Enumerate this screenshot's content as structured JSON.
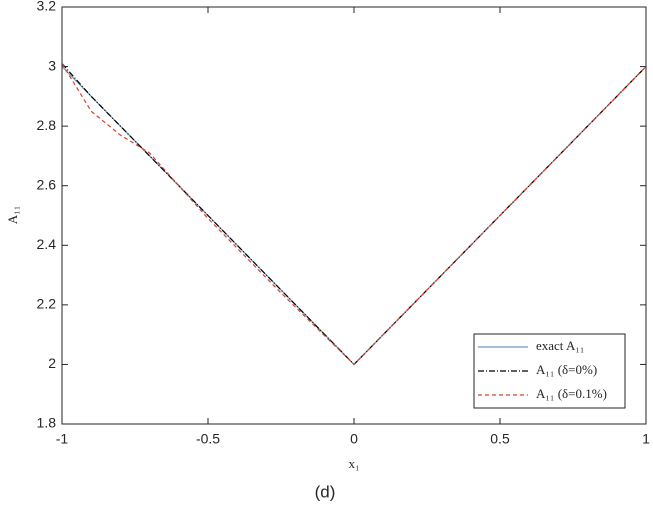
{
  "chart_data": {
    "type": "line",
    "xlabel": "x₁",
    "ylabel": "A₁₁",
    "caption": "(d)",
    "x": [
      -1,
      -0.9,
      -0.8,
      -0.7,
      -0.6,
      -0.5,
      -0.25,
      0,
      0.25,
      0.5,
      0.75,
      1
    ],
    "series": [
      {
        "name": "exact A₁₁",
        "color": "#6a9cc0",
        "linestyle": "solid",
        "values": [
          3,
          2.9,
          2.8,
          2.7,
          2.6,
          2.5,
          2.25,
          2,
          2.25,
          2.5,
          2.75,
          3
        ]
      },
      {
        "name": "A₁₁ (δ=0%)",
        "color": "#000000",
        "linestyle": "dashdot",
        "values": [
          3.01,
          2.9,
          2.8,
          2.7,
          2.6,
          2.5,
          2.25,
          2,
          2.25,
          2.5,
          2.75,
          3
        ]
      },
      {
        "name": "A₁₁ (δ=0.1%)",
        "color": "#d9432a",
        "linestyle": "dashed",
        "values": [
          3.01,
          2.85,
          2.77,
          2.71,
          2.6,
          2.49,
          2.24,
          2,
          2.25,
          2.5,
          2.75,
          3
        ]
      }
    ],
    "xlim": [
      -1,
      1
    ],
    "xticks": [
      -1,
      -0.5,
      0,
      0.5,
      1
    ],
    "ylim": [
      1.8,
      3.2
    ],
    "yticks": [
      1.8,
      2,
      2.2,
      2.4,
      2.6,
      2.8,
      3,
      3.2
    ],
    "grid": false,
    "legend": "lower right"
  }
}
